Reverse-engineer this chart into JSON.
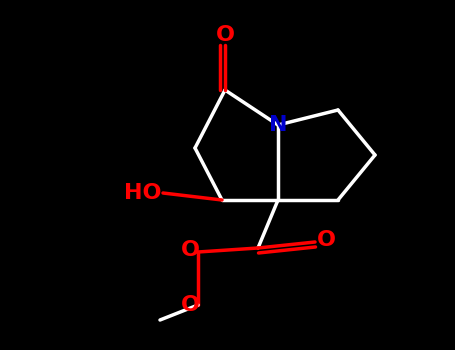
{
  "bg_color": "#000000",
  "bond_color": "#ffffff",
  "nitrogen_color": "#0000cd",
  "oxygen_color": "#ff0000",
  "bond_lw": 2.5,
  "font_size": 16,
  "figsize": [
    4.55,
    3.5
  ],
  "dpi": 100,
  "xlim": [
    0,
    455
  ],
  "ylim": [
    0,
    350
  ]
}
